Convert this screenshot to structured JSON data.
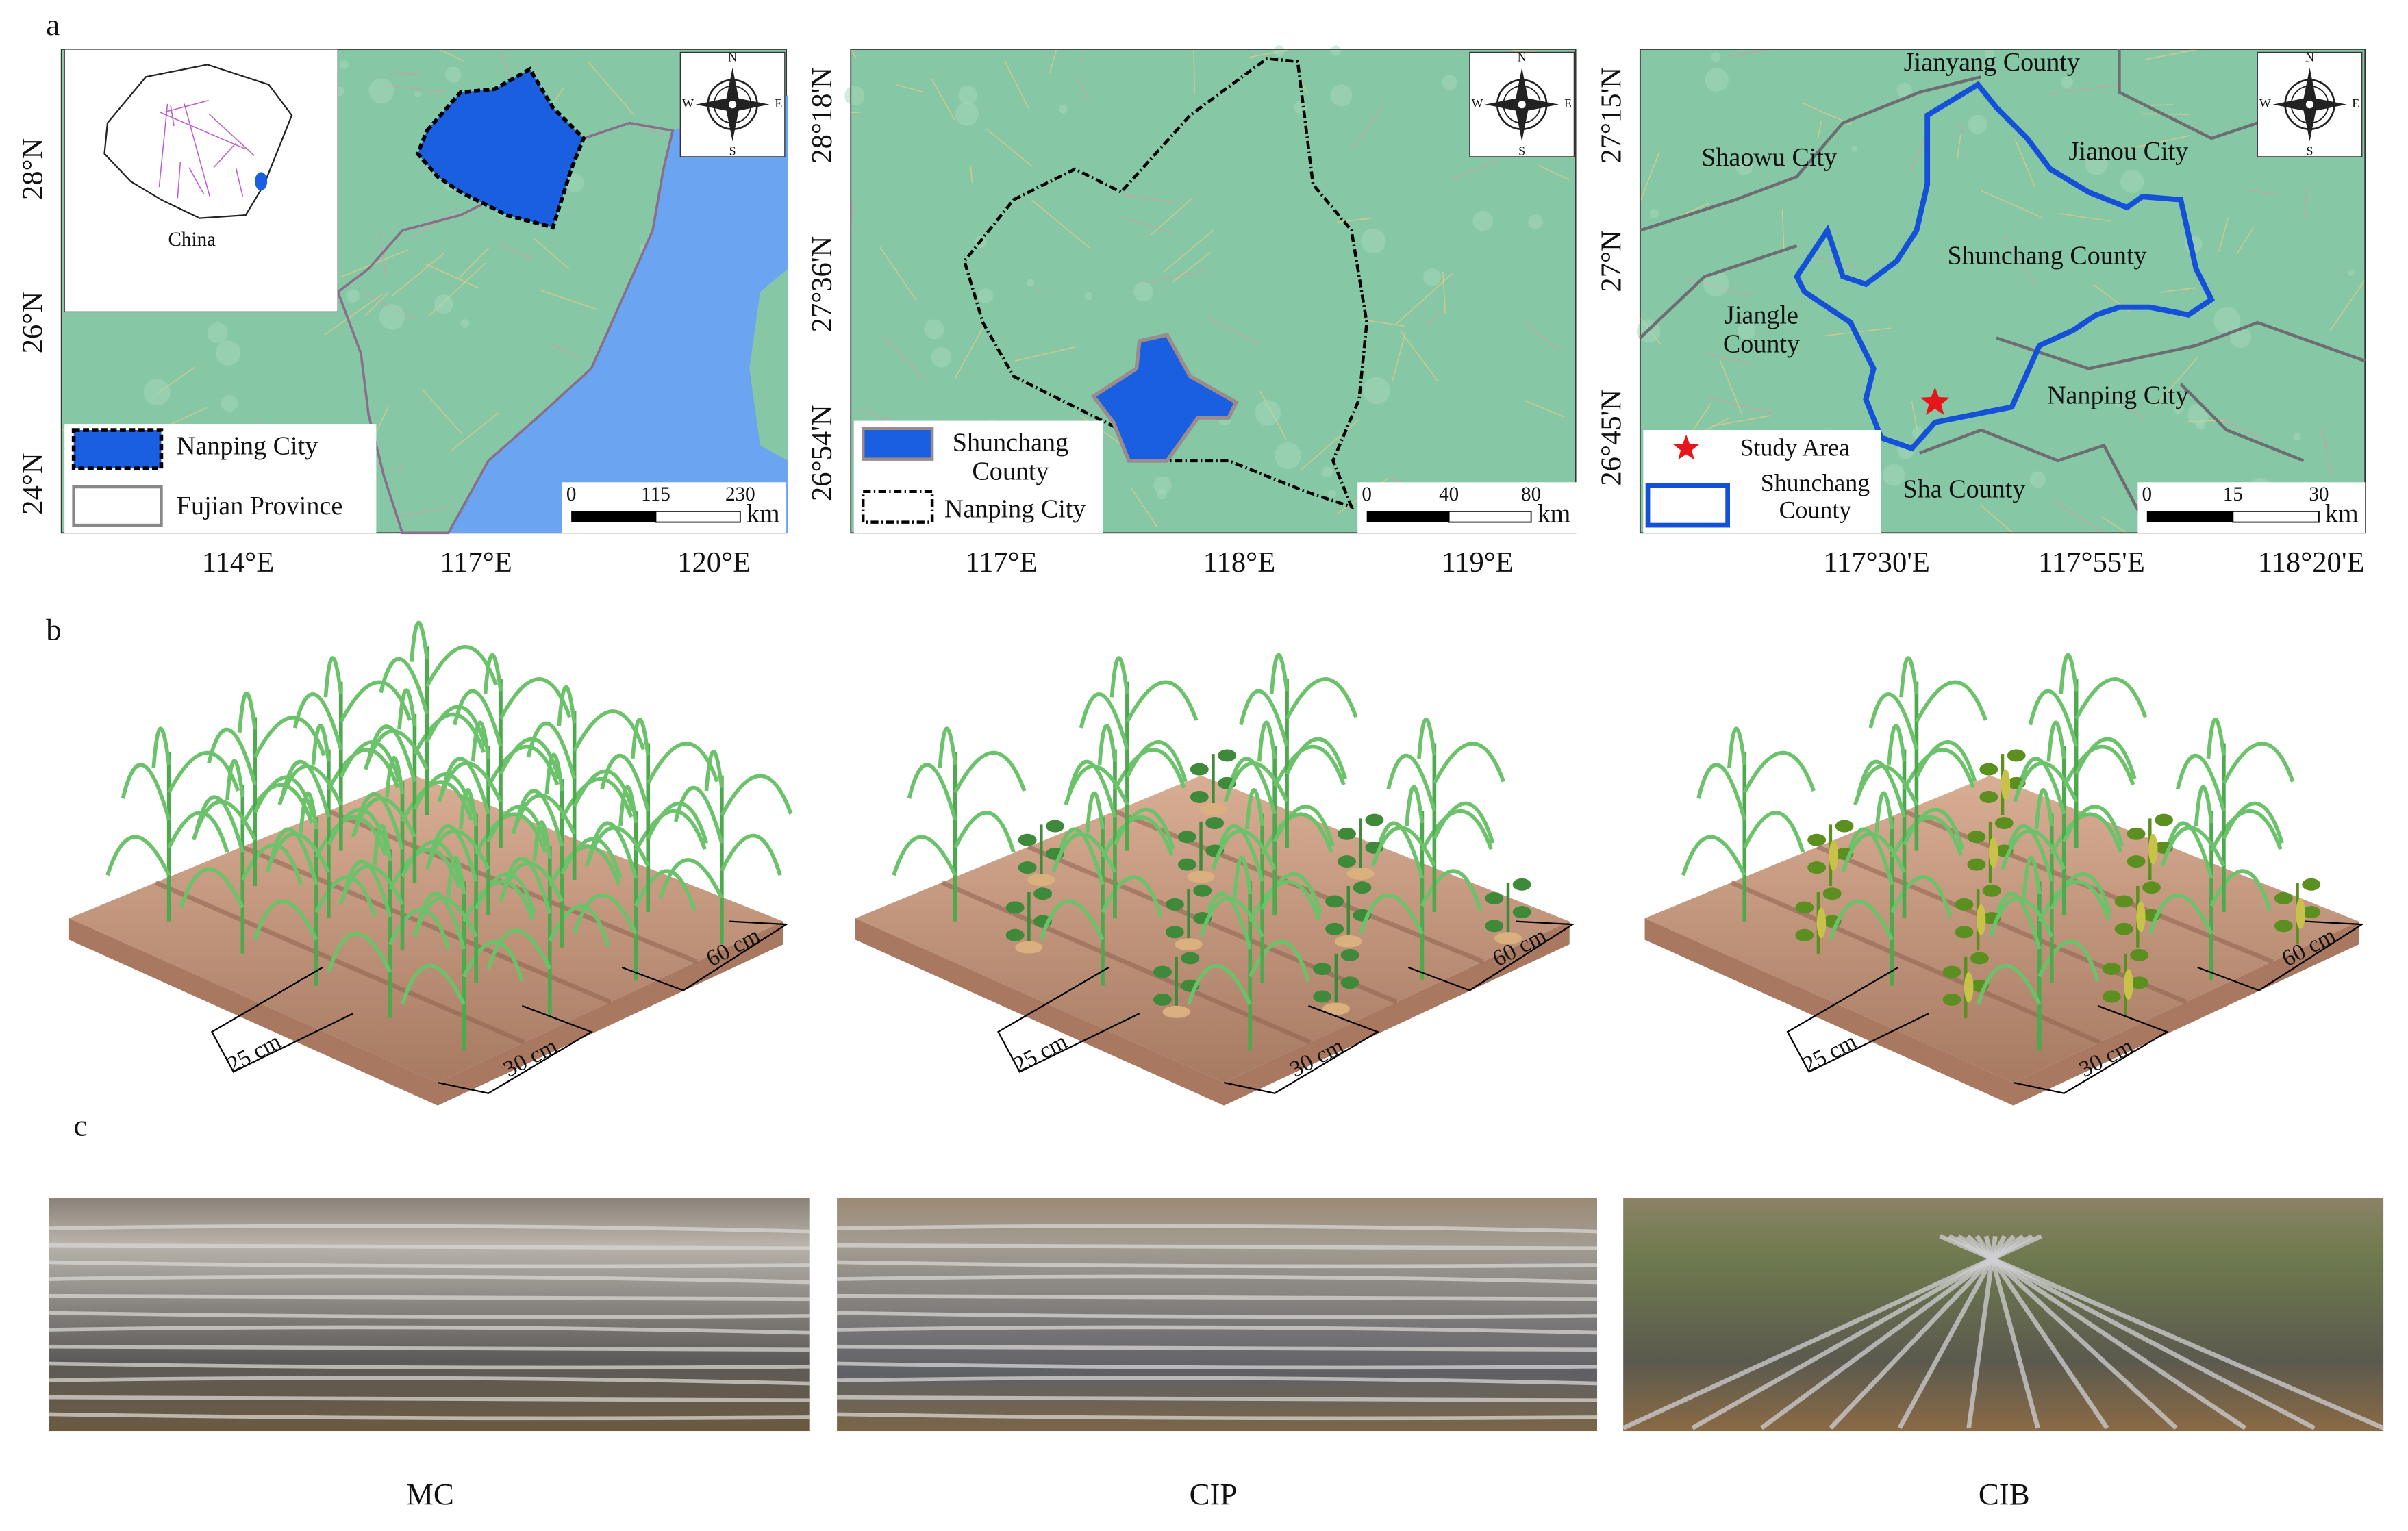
{
  "panel_labels": [
    "a",
    "b",
    "c"
  ],
  "maps": [
    {
      "lat_labels": [
        "28°N",
        "26°N",
        "24°N"
      ],
      "lon_labels": [
        "114°E",
        "117°E",
        "120°E"
      ],
      "inset_label": "China",
      "legend": [
        "Nanping City",
        "Fujian Province"
      ],
      "scale": [
        "0",
        "115",
        "230",
        "km"
      ],
      "compass": [
        "N",
        "S",
        "W",
        "E"
      ]
    },
    {
      "lat_labels": [
        "28°18'N",
        "27°36'N",
        "26°54'N"
      ],
      "lon_labels": [
        "117°E",
        "118°E",
        "119°E"
      ],
      "legend": [
        "Shunchang County",
        "Nanping City"
      ],
      "scale": [
        "0",
        "40",
        "80",
        "km"
      ],
      "compass": [
        "N",
        "S",
        "W",
        "E"
      ]
    },
    {
      "lat_labels": [
        "27°15'N",
        "27°N",
        "26°45'N"
      ],
      "lon_labels": [
        "117°30'E",
        "117°55'E",
        "118°20'E"
      ],
      "places": [
        "Jianyang County",
        "Shaowu City",
        "Jianou City",
        "Shunchang County",
        "Jiangle County",
        "Nanping City",
        "Sha County"
      ],
      "legend": [
        "Study Area",
        "Shunchang County"
      ],
      "scale": [
        "0",
        "15",
        "30",
        "km"
      ],
      "compass": [
        "N",
        "S",
        "W",
        "E"
      ]
    }
  ],
  "layouts": [
    {
      "labels": [
        "25 cm",
        "30 cm",
        "60 cm"
      ]
    },
    {
      "labels": [
        "25 cm",
        "30 cm",
        "60 cm"
      ]
    },
    {
      "labels": [
        "25 cm",
        "30 cm",
        "60 cm"
      ]
    }
  ],
  "photos": [
    "MC",
    "CIP",
    "CIB"
  ]
}
